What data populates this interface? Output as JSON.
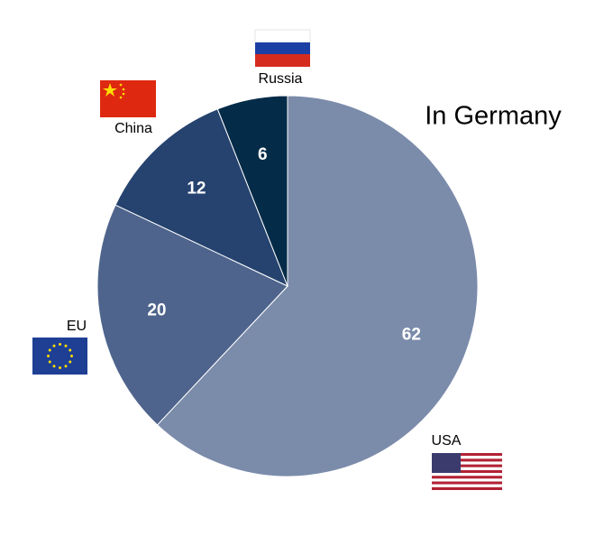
{
  "chart_data": {
    "type": "pie",
    "title": "In Germany",
    "categories": [
      "USA",
      "EU",
      "China",
      "Russia"
    ],
    "values": [
      62,
      20,
      12,
      6
    ],
    "colors": [
      "#7b8baa",
      "#4e648c",
      "#26436f",
      "#042b48"
    ]
  }
}
